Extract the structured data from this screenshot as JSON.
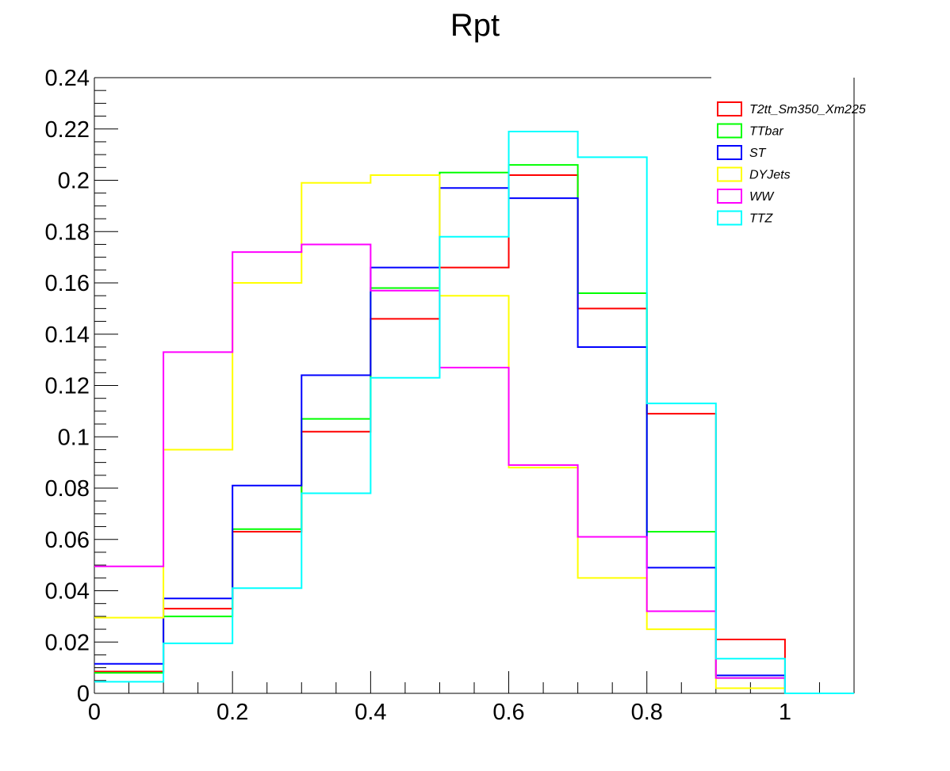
{
  "chart_data": {
    "type": "line",
    "style": "step-histogram",
    "title": "Rpt",
    "xlabel": "",
    "ylabel": "",
    "xlim": [
      0,
      1.1
    ],
    "ylim": [
      0,
      0.24
    ],
    "bin_edges": [
      0,
      0.1,
      0.2,
      0.3,
      0.4,
      0.5,
      0.6,
      0.7,
      0.8,
      0.9,
      1.0,
      1.1
    ],
    "x_ticks": [
      {
        "value": 0,
        "label": "0"
      },
      {
        "value": 0.2,
        "label": "0.2"
      },
      {
        "value": 0.4,
        "label": "0.4"
      },
      {
        "value": 0.6,
        "label": "0.6"
      },
      {
        "value": 0.8,
        "label": "0.8"
      },
      {
        "value": 1.0,
        "label": "1"
      }
    ],
    "y_ticks": [
      {
        "value": 0,
        "label": "0"
      },
      {
        "value": 0.02,
        "label": "0.02"
      },
      {
        "value": 0.04,
        "label": "0.04"
      },
      {
        "value": 0.06,
        "label": "0.06"
      },
      {
        "value": 0.08,
        "label": "0.08"
      },
      {
        "value": 0.1,
        "label": "0.1"
      },
      {
        "value": 0.12,
        "label": "0.12"
      },
      {
        "value": 0.14,
        "label": "0.14"
      },
      {
        "value": 0.16,
        "label": "0.16"
      },
      {
        "value": 0.18,
        "label": "0.18"
      },
      {
        "value": 0.2,
        "label": "0.2"
      },
      {
        "value": 0.22,
        "label": "0.22"
      },
      {
        "value": 0.24,
        "label": "0.24"
      }
    ],
    "grid": false,
    "legend_position": "top-right",
    "series": [
      {
        "name": "T2tt_Sm350_Xm225",
        "color": "#ff0000",
        "values": [
          0.0085,
          0.033,
          0.063,
          0.102,
          0.146,
          0.166,
          0.202,
          0.15,
          0.109,
          0.021,
          0.0
        ]
      },
      {
        "name": "TTbar",
        "color": "#00ff00",
        "values": [
          0.008,
          0.03,
          0.064,
          0.107,
          0.158,
          0.203,
          0.206,
          0.156,
          0.063,
          0.006,
          0.0
        ]
      },
      {
        "name": "ST",
        "color": "#0000ff",
        "values": [
          0.0115,
          0.037,
          0.081,
          0.124,
          0.166,
          0.197,
          0.193,
          0.135,
          0.049,
          0.007,
          0.0
        ]
      },
      {
        "name": "DYJets",
        "color": "#ffff00",
        "values": [
          0.0295,
          0.095,
          0.16,
          0.199,
          0.202,
          0.155,
          0.088,
          0.045,
          0.025,
          0.002,
          0.0
        ]
      },
      {
        "name": "WW",
        "color": "#ff00ff",
        "values": [
          0.0495,
          0.133,
          0.172,
          0.175,
          0.157,
          0.127,
          0.089,
          0.061,
          0.032,
          0.006,
          0.0
        ]
      },
      {
        "name": "TTZ",
        "color": "#00ffff",
        "values": [
          0.0045,
          0.0195,
          0.041,
          0.078,
          0.123,
          0.178,
          0.219,
          0.209,
          0.113,
          0.0135,
          0.0
        ]
      }
    ]
  }
}
